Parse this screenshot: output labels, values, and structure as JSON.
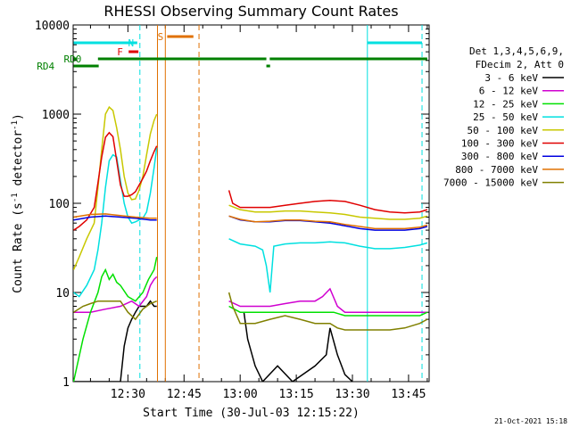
{
  "chart_data": {
    "type": "line",
    "title": "RHESSI Observing Summary Count Rates",
    "xlabel": "Start Time (30-Jul-03 12:15:22)",
    "ylabel_main": "Count Rate (s",
    "ylabel_sup1": "-1",
    "ylabel_mid": " detector",
    "ylabel_sup2": "-1",
    "ylabel_end": ")",
    "yscale": "log",
    "ylim": [
      1,
      10000
    ],
    "xlim_min": [
      15.37,
      74.5
    ],
    "y_ticks": [
      {
        "v": 1,
        "label": "1"
      },
      {
        "v": 10,
        "label": "10"
      },
      {
        "v": 100,
        "label": "100"
      },
      {
        "v": 1000,
        "label": "1000"
      },
      {
        "v": 10000,
        "label": "10000"
      }
    ],
    "x_ticks": [
      {
        "v": 30,
        "label": "12:30"
      },
      {
        "v": 45,
        "label": "12:45"
      },
      {
        "v": 60,
        "label": "13:00"
      },
      {
        "v": 75,
        "label": "13:15"
      },
      {
        "v": 90,
        "label": "13:30"
      },
      {
        "v": 105,
        "label": "13:45"
      }
    ],
    "legend_title": [
      "Det 1,3,4,5,6,9,",
      "FDecim 2, Att 0"
    ],
    "series": [
      {
        "name": "3 - 6 keV",
        "color": "#000000",
        "points": [
          [
            15.5,
            1
          ],
          [
            28,
            1
          ],
          [
            29,
            2.5
          ],
          [
            30,
            4
          ],
          [
            31,
            5
          ],
          [
            32,
            6
          ],
          [
            33,
            7
          ],
          [
            34,
            7
          ],
          [
            35,
            7
          ],
          [
            36,
            8
          ],
          [
            37,
            7
          ],
          [
            37.7,
            7
          ],
          [
            null,
            null
          ],
          [
            61,
            6
          ],
          [
            62,
            3
          ],
          [
            64,
            1.5
          ],
          [
            66,
            1
          ],
          [
            70,
            1.5
          ],
          [
            74,
            1
          ],
          [
            80,
            1.5
          ],
          [
            83,
            2
          ],
          [
            84,
            4
          ],
          [
            86,
            2
          ],
          [
            88,
            1.2
          ],
          [
            90,
            1
          ]
        ]
      },
      {
        "name": "6 - 12 keV",
        "color": "#d000d0",
        "points": [
          [
            15.5,
            6
          ],
          [
            20,
            6
          ],
          [
            24,
            6.5
          ],
          [
            28,
            7
          ],
          [
            31,
            8
          ],
          [
            33,
            7
          ],
          [
            35,
            9
          ],
          [
            36,
            12
          ],
          [
            37,
            14
          ],
          [
            37.7,
            15
          ],
          [
            null,
            null
          ],
          [
            57,
            8
          ],
          [
            60,
            7
          ],
          [
            64,
            7
          ],
          [
            68,
            7
          ],
          [
            72,
            7.5
          ],
          [
            76,
            8
          ],
          [
            80,
            8
          ],
          [
            82,
            9
          ],
          [
            84,
            11
          ],
          [
            86,
            7
          ],
          [
            88,
            6
          ],
          [
            92,
            6
          ],
          [
            96,
            6
          ],
          [
            100,
            6
          ],
          [
            104,
            6
          ],
          [
            108,
            6
          ],
          [
            110,
            6
          ]
        ]
      },
      {
        "name": "12 - 25 keV",
        "color": "#00e000",
        "points": [
          [
            15.5,
            1
          ],
          [
            18,
            3
          ],
          [
            20,
            6
          ],
          [
            22,
            10
          ],
          [
            23,
            15
          ],
          [
            24,
            18
          ],
          [
            25,
            14
          ],
          [
            26,
            16
          ],
          [
            27,
            13
          ],
          [
            28,
            12
          ],
          [
            30,
            9
          ],
          [
            32,
            8
          ],
          [
            34,
            10
          ],
          [
            35.5,
            14
          ],
          [
            37,
            18
          ],
          [
            37.7,
            25
          ],
          [
            null,
            null
          ],
          [
            57,
            7
          ],
          [
            60,
            6
          ],
          [
            65,
            6
          ],
          [
            70,
            6
          ],
          [
            75,
            6
          ],
          [
            80,
            6
          ],
          [
            85,
            6
          ],
          [
            88,
            5.5
          ],
          [
            92,
            5.5
          ],
          [
            100,
            5.5
          ],
          [
            108,
            5.5
          ],
          [
            110,
            6
          ]
        ]
      },
      {
        "name": "25 - 50 keV",
        "color": "#00e0e0",
        "points": [
          [
            15.5,
            10
          ],
          [
            17,
            9
          ],
          [
            19,
            12
          ],
          [
            21,
            18
          ],
          [
            22,
            30
          ],
          [
            23,
            60
          ],
          [
            24,
            150
          ],
          [
            25,
            300
          ],
          [
            26,
            350
          ],
          [
            27,
            330
          ],
          [
            28,
            180
          ],
          [
            29,
            100
          ],
          [
            30,
            70
          ],
          [
            31,
            60
          ],
          [
            32,
            62
          ],
          [
            33,
            65
          ],
          [
            34,
            68
          ],
          [
            35,
            80
          ],
          [
            36,
            130
          ],
          [
            37,
            250
          ],
          [
            37.7,
            420
          ],
          [
            null,
            null
          ],
          [
            57,
            40
          ],
          [
            60,
            35
          ],
          [
            64,
            33
          ],
          [
            66,
            30
          ],
          [
            67,
            20
          ],
          [
            68,
            10
          ],
          [
            69,
            33
          ],
          [
            72,
            35
          ],
          [
            76,
            36
          ],
          [
            80,
            36
          ],
          [
            84,
            37
          ],
          [
            88,
            36
          ],
          [
            92,
            33
          ],
          [
            96,
            31
          ],
          [
            100,
            31
          ],
          [
            104,
            32
          ],
          [
            108,
            34
          ],
          [
            110,
            36
          ]
        ]
      },
      {
        "name": "50 - 100 keV",
        "color": "#c8c800",
        "points": [
          [
            15.5,
            18
          ],
          [
            17,
            25
          ],
          [
            19,
            40
          ],
          [
            21,
            60
          ],
          [
            22,
            150
          ],
          [
            23,
            400
          ],
          [
            24,
            1000
          ],
          [
            25,
            1200
          ],
          [
            26,
            1100
          ],
          [
            27,
            700
          ],
          [
            28,
            400
          ],
          [
            29,
            200
          ],
          [
            30,
            130
          ],
          [
            31,
            110
          ],
          [
            32,
            112
          ],
          [
            33,
            140
          ],
          [
            34,
            200
          ],
          [
            35,
            350
          ],
          [
            36,
            600
          ],
          [
            37,
            850
          ],
          [
            37.7,
            1000
          ],
          [
            null,
            null
          ],
          [
            57,
            95
          ],
          [
            60,
            85
          ],
          [
            64,
            80
          ],
          [
            68,
            80
          ],
          [
            72,
            82
          ],
          [
            76,
            82
          ],
          [
            80,
            80
          ],
          [
            84,
            78
          ],
          [
            88,
            75
          ],
          [
            92,
            70
          ],
          [
            96,
            68
          ],
          [
            100,
            66
          ],
          [
            104,
            66
          ],
          [
            108,
            68
          ],
          [
            110,
            72
          ]
        ]
      },
      {
        "name": "100 - 300 keV",
        "color": "#e00000",
        "points": [
          [
            15.5,
            50
          ],
          [
            17,
            55
          ],
          [
            19,
            65
          ],
          [
            21,
            90
          ],
          [
            22,
            170
          ],
          [
            23,
            330
          ],
          [
            24,
            550
          ],
          [
            25,
            620
          ],
          [
            26,
            560
          ],
          [
            27,
            300
          ],
          [
            28,
            160
          ],
          [
            29,
            120
          ],
          [
            30,
            120
          ],
          [
            31,
            125
          ],
          [
            32,
            135
          ],
          [
            33,
            160
          ],
          [
            34,
            190
          ],
          [
            35,
            230
          ],
          [
            36,
            300
          ],
          [
            37,
            380
          ],
          [
            37.7,
            440
          ],
          [
            null,
            null
          ],
          [
            57,
            140
          ],
          [
            58,
            100
          ],
          [
            60,
            90
          ],
          [
            64,
            90
          ],
          [
            68,
            90
          ],
          [
            72,
            95
          ],
          [
            76,
            100
          ],
          [
            80,
            105
          ],
          [
            84,
            108
          ],
          [
            88,
            105
          ],
          [
            92,
            95
          ],
          [
            96,
            85
          ],
          [
            100,
            80
          ],
          [
            104,
            78
          ],
          [
            108,
            80
          ],
          [
            110,
            85
          ]
        ]
      },
      {
        "name": "300 - 800 keV",
        "color": "#0000e0",
        "points": [
          [
            15.5,
            65
          ],
          [
            20,
            70
          ],
          [
            24,
            72
          ],
          [
            28,
            70
          ],
          [
            32,
            68
          ],
          [
            36,
            65
          ],
          [
            37.7,
            65
          ],
          [
            null,
            null
          ],
          [
            57,
            72
          ],
          [
            60,
            65
          ],
          [
            64,
            62
          ],
          [
            68,
            62
          ],
          [
            72,
            64
          ],
          [
            76,
            64
          ],
          [
            80,
            62
          ],
          [
            84,
            60
          ],
          [
            88,
            56
          ],
          [
            92,
            52
          ],
          [
            96,
            50
          ],
          [
            100,
            50
          ],
          [
            104,
            50
          ],
          [
            108,
            52
          ],
          [
            110,
            55
          ]
        ]
      },
      {
        "name": "800 - 7000 keV",
        "color": "#e07000",
        "points": [
          [
            15.5,
            70
          ],
          [
            20,
            75
          ],
          [
            24,
            76
          ],
          [
            28,
            73
          ],
          [
            32,
            70
          ],
          [
            36,
            68
          ],
          [
            37.7,
            68
          ],
          [
            null,
            null
          ],
          [
            57,
            72
          ],
          [
            60,
            66
          ],
          [
            64,
            62
          ],
          [
            68,
            63
          ],
          [
            72,
            65
          ],
          [
            76,
            65
          ],
          [
            80,
            63
          ],
          [
            84,
            62
          ],
          [
            88,
            58
          ],
          [
            92,
            55
          ],
          [
            96,
            52
          ],
          [
            100,
            52
          ],
          [
            104,
            52
          ],
          [
            108,
            54
          ],
          [
            110,
            57
          ]
        ]
      },
      {
        "name": "7000 - 15000 keV",
        "color": "#808000",
        "points": [
          [
            15.5,
            6
          ],
          [
            18,
            7
          ],
          [
            20,
            7.5
          ],
          [
            22,
            8
          ],
          [
            24,
            8
          ],
          [
            26,
            8
          ],
          [
            28,
            8
          ],
          [
            30,
            6
          ],
          [
            32,
            5
          ],
          [
            34,
            6.5
          ],
          [
            36,
            7.5
          ],
          [
            37.7,
            8
          ],
          [
            null,
            null
          ],
          [
            57,
            10
          ],
          [
            58,
            7
          ],
          [
            60,
            4.5
          ],
          [
            64,
            4.5
          ],
          [
            68,
            5
          ],
          [
            72,
            5.5
          ],
          [
            76,
            5
          ],
          [
            80,
            4.5
          ],
          [
            84,
            4.5
          ],
          [
            86,
            4
          ],
          [
            88,
            3.8
          ],
          [
            92,
            3.8
          ],
          [
            96,
            3.8
          ],
          [
            100,
            3.8
          ],
          [
            104,
            4
          ],
          [
            108,
            4.5
          ],
          [
            110,
            5
          ]
        ]
      }
    ],
    "vlines": [
      {
        "x": 33.2,
        "color": "#00e0e0",
        "dash": true
      },
      {
        "x": 37.9,
        "color": "#e07000",
        "dash": false
      },
      {
        "x": 40.0,
        "color": "#e07000",
        "dash": false
      },
      {
        "x": 49.0,
        "color": "#e07000",
        "dash": true
      },
      {
        "x": 94.0,
        "color": "#00e0e0",
        "dash": false
      },
      {
        "x": 108.6,
        "color": "#00e0e0",
        "dash": true
      }
    ],
    "flag_bars": [
      {
        "label": "N",
        "color": "#00e0e0",
        "label_x": 31.6,
        "segments": [
          [
            15.5,
            32.5
          ],
          [
            94,
            108.6
          ]
        ],
        "level": 0
      },
      {
        "label": "S",
        "color": "#e07000",
        "label_x": 39.5,
        "segments": [
          [
            40.5,
            47.5
          ]
        ],
        "level": -1
      },
      {
        "label": "F",
        "color": "#e00000",
        "label_x": 28.7,
        "segments": [
          [
            30.2,
            32.8
          ]
        ],
        "level": 1
      },
      {
        "label": "RD0",
        "color": "#008000",
        "label_x": 17.6,
        "segments": [
          [
            15.5,
            16.3
          ],
          [
            22,
            67
          ],
          [
            67.9,
            110
          ]
        ],
        "level": 2
      },
      {
        "label": "RD4",
        "color": "#008000",
        "label_x": 10.4,
        "segments": [
          [
            15.5,
            22.2
          ],
          [
            67,
            68
          ]
        ],
        "level": 3
      }
    ],
    "timestamp": "21-Oct-2021 15:18"
  }
}
